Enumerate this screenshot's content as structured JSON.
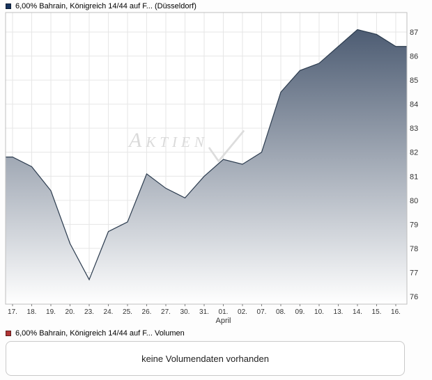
{
  "header": {
    "legend_label": "6,00% Bahrain, Königreich 14/44 auf F... (Düsseldorf)",
    "legend_color": "#16325c"
  },
  "chart_data": {
    "type": "area",
    "title": "6,00% Bahrain, Königreich 14/44 auf F... (Düsseldorf)",
    "x_labels": [
      "17.",
      "18.",
      "19.",
      "20.",
      "23.",
      "24.",
      "25.",
      "26.",
      "27.",
      "30.",
      "31.",
      "01.",
      "02.",
      "07.",
      "08.",
      "09.",
      "10.",
      "13.",
      "14.",
      "15.",
      "16."
    ],
    "values": [
      81.8,
      81.4,
      80.4,
      78.2,
      76.7,
      78.7,
      79.1,
      81.1,
      80.5,
      80.1,
      81.0,
      81.7,
      81.5,
      82.0,
      84.5,
      85.4,
      85.7,
      86.4,
      87.1,
      86.9,
      86.4
    ],
    "month_label": "April",
    "month_index": 11,
    "y_ticks": [
      76,
      77,
      78,
      79,
      80,
      81,
      82,
      83,
      84,
      85,
      86,
      87
    ],
    "y_range": [
      75.7,
      87.8
    ],
    "grid": true,
    "legend_position": "top-left",
    "line_color": "#2b3b4e",
    "fill_top": "#42526a",
    "fill_bottom": "#ffffff",
    "grid_color": "#e6e6e6"
  },
  "watermark": {
    "text": "Aktien"
  },
  "volume": {
    "legend_label": "6,00% Bahrain, Königreich 14/44 auf F... Volumen",
    "legend_color": "#b03333",
    "message": "keine Volumendaten vorhanden"
  }
}
